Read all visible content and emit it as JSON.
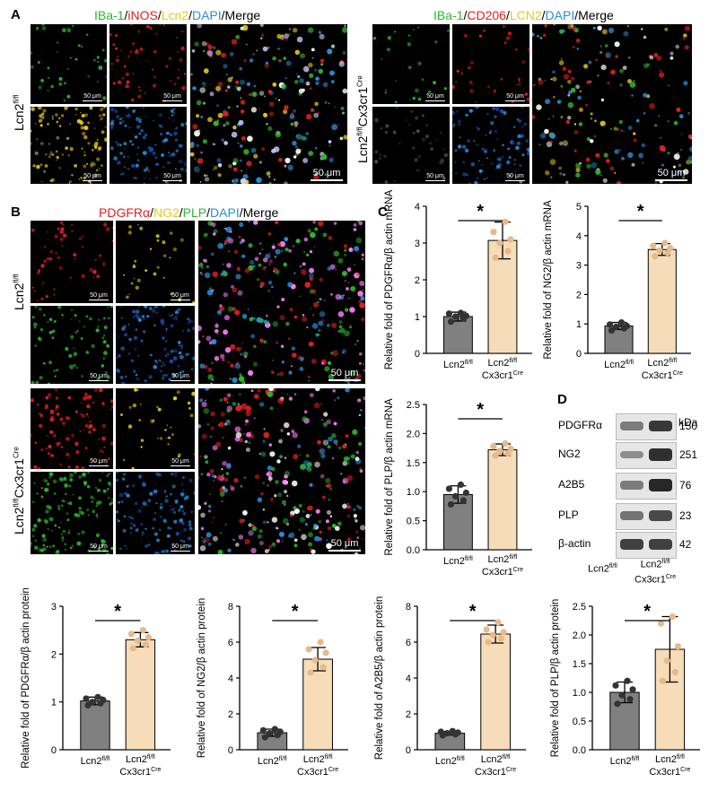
{
  "panel_letters": {
    "a": "A",
    "b": "B",
    "c": "C",
    "d": "D"
  },
  "colors": {
    "green": "#2fb52f",
    "red": "#e02020",
    "yellow": "#e8c81c",
    "blue": "#2a8fd8",
    "bar_control": "#808080",
    "bar_ko": "#f6dcb8",
    "dot_control": "#333333",
    "dot_ko": "#e8b98a"
  },
  "panelA": {
    "left_header": [
      {
        "text": "IBa-1",
        "color": "#2fb52f"
      },
      {
        "text": "/",
        "color": "#000"
      },
      {
        "text": "iNOS",
        "color": "#e02020"
      },
      {
        "text": "/",
        "color": "#000"
      },
      {
        "text": "Lcn2",
        "color": "#e8c81c"
      },
      {
        "text": "/",
        "color": "#000"
      },
      {
        "text": "DAPI",
        "color": "#2a8fd8"
      },
      {
        "text": "/Merge",
        "color": "#000"
      }
    ],
    "right_header": [
      {
        "text": "IBa-1",
        "color": "#2fb52f"
      },
      {
        "text": "/",
        "color": "#000"
      },
      {
        "text": "CD206",
        "color": "#e02020"
      },
      {
        "text": "/",
        "color": "#000"
      },
      {
        "text": "LCN2",
        "color": "#e8c81c"
      },
      {
        "text": "/",
        "color": "#000"
      },
      {
        "text": "DAPI",
        "color": "#2a8fd8"
      },
      {
        "text": "/Merge",
        "color": "#000"
      }
    ],
    "row_left": {
      "base": "Lcn2",
      "sup": "fl/fl",
      "suffix": "",
      "sup2": ""
    },
    "row_right": {
      "base": "Lcn2",
      "sup": "fl/fl",
      "suffix": "Cx3cr1",
      "sup2": "Cre"
    },
    "scale_small": "50 μm",
    "scale_big": "50 μm"
  },
  "panelB": {
    "header": [
      {
        "text": "PDGFRα",
        "color": "#e02020"
      },
      {
        "text": "/",
        "color": "#000"
      },
      {
        "text": "NG2",
        "color": "#e8c81c"
      },
      {
        "text": "/",
        "color": "#000"
      },
      {
        "text": "PLP",
        "color": "#2fb52f"
      },
      {
        "text": "/",
        "color": "#000"
      },
      {
        "text": "DAPI",
        "color": "#2a8fd8"
      },
      {
        "text": "/Merge",
        "color": "#000"
      }
    ],
    "row_top": {
      "base": "Lcn2",
      "sup": "fl/fl",
      "suffix": "",
      "sup2": ""
    },
    "row_bottom": {
      "base": "Lcn2",
      "sup": "fl/fl",
      "suffix": "Cx3cr1",
      "sup2": "Cre"
    },
    "scale_small": "50 μm",
    "scale_big": "50 μm"
  },
  "group_labels": {
    "control": "Lcn2",
    "control_sup": "fl/fl",
    "ko_line1": "Lcn2",
    "ko_line1_sup": "fl/fl",
    "ko_line2": "Cx3cr1",
    "ko_line2_sup": "Cre"
  },
  "significance": "*",
  "chart_data": [
    {
      "type": "bar",
      "id": "c_pdgfra_mrna",
      "ylabel": "Relative fold of PDGFRα/β actin mRNA",
      "ylim": [
        0,
        4
      ],
      "yticks": [
        0,
        1,
        2,
        3,
        4
      ],
      "categories": [
        "Lcn2 fl/fl",
        "Lcn2 fl/fl Cx3cr1 Cre"
      ],
      "values": [
        1.0,
        3.07
      ],
      "errors": [
        0.12,
        0.5
      ],
      "points": [
        [
          0.86,
          0.95,
          1.0,
          1.02,
          1.08,
          1.1
        ],
        [
          2.6,
          2.78,
          3.0,
          3.1,
          3.3,
          3.58
        ]
      ]
    },
    {
      "type": "bar",
      "id": "c_ng2_mrna",
      "ylabel": "Relative fold of NG2/β actin mRNA",
      "ylim": [
        0,
        5
      ],
      "yticks": [
        0,
        1,
        2,
        3,
        4,
        5
      ],
      "categories": [
        "Lcn2 fl/fl",
        "Lcn2 fl/fl Cx3cr1 Cre"
      ],
      "values": [
        0.93,
        3.53
      ],
      "errors": [
        0.12,
        0.2
      ],
      "points": [
        [
          0.78,
          0.85,
          0.9,
          0.93,
          0.98,
          1.05
        ],
        [
          3.3,
          3.42,
          3.5,
          3.58,
          3.66,
          3.75
        ]
      ]
    },
    {
      "type": "bar",
      "id": "c_plp_mrna",
      "ylabel": "Relative fold of PLP/β actin mRNA",
      "ylim": [
        0,
        2.5
      ],
      "yticks": [
        0,
        0.5,
        1.0,
        1.5,
        2.0,
        2.5
      ],
      "categories": [
        "Lcn2 fl/fl",
        "Lcn2 fl/fl Cx3cr1 Cre"
      ],
      "values": [
        0.95,
        1.72
      ],
      "errors": [
        0.15,
        0.1
      ],
      "points": [
        [
          0.78,
          0.85,
          0.92,
          0.98,
          1.05,
          1.12
        ],
        [
          1.62,
          1.66,
          1.7,
          1.74,
          1.78,
          1.83
        ]
      ]
    },
    {
      "type": "bar",
      "id": "d_pdgfra_prot",
      "ylabel": "Relative fold of PDGFRα/β actin protein",
      "ylim": [
        0,
        3
      ],
      "yticks": [
        0,
        1,
        2,
        3
      ],
      "categories": [
        "Lcn2 fl/fl",
        "Lcn2 fl/fl Cx3cr1 Cre"
      ],
      "values": [
        1.02,
        2.3
      ],
      "errors": [
        0.08,
        0.15
      ],
      "points": [
        [
          0.93,
          0.97,
          1.0,
          1.04,
          1.07,
          1.1
        ],
        [
          2.12,
          2.2,
          2.28,
          2.35,
          2.42,
          2.5
        ]
      ]
    },
    {
      "type": "bar",
      "id": "d_ng2_prot",
      "ylabel": "Relative fold of NG2/β actin protein",
      "ylim": [
        0,
        8
      ],
      "yticks": [
        0,
        2,
        4,
        6,
        8
      ],
      "categories": [
        "Lcn2 fl/fl",
        "Lcn2 fl/fl Cx3cr1 Cre"
      ],
      "values": [
        0.95,
        5.05
      ],
      "errors": [
        0.2,
        0.65
      ],
      "points": [
        [
          0.7,
          0.82,
          0.92,
          1.0,
          1.08,
          1.15
        ],
        [
          4.3,
          4.6,
          5.0,
          5.4,
          5.6,
          6.0
        ]
      ]
    },
    {
      "type": "bar",
      "id": "d_a2b5_prot",
      "ylabel": "Relative fold of A2B5/β actin protein",
      "ylim": [
        0,
        8
      ],
      "yticks": [
        0,
        2,
        4,
        6,
        8
      ],
      "categories": [
        "Lcn2 fl/fl",
        "Lcn2 fl/fl Cx3cr1 Cre"
      ],
      "values": [
        0.92,
        6.45
      ],
      "errors": [
        0.1,
        0.5
      ],
      "points": [
        [
          0.8,
          0.86,
          0.92,
          0.96,
          1.0,
          1.04
        ],
        [
          6.0,
          6.2,
          6.4,
          6.55,
          6.7,
          7.1
        ]
      ]
    },
    {
      "type": "bar",
      "id": "d_plp_prot",
      "ylabel": "Relative fold of PLP/β actin protein",
      "ylim": [
        0,
        2.5
      ],
      "yticks": [
        0,
        0.5,
        1.0,
        1.5,
        2.0,
        2.5
      ],
      "categories": [
        "Lcn2 fl/fl",
        "Lcn2 fl/fl Cx3cr1 Cre"
      ],
      "values": [
        1.0,
        1.75
      ],
      "errors": [
        0.18,
        0.57
      ],
      "points": [
        [
          0.8,
          0.88,
          0.95,
          1.05,
          1.12,
          1.2
        ],
        [
          1.2,
          1.35,
          1.55,
          1.8,
          2.2,
          2.32
        ]
      ]
    }
  ],
  "western": {
    "header": "kDa",
    "rows": [
      {
        "label": "PDGFRα",
        "kda": "150",
        "ctrl": 0.45,
        "ko": 0.85
      },
      {
        "label": "NG2",
        "kda": "251",
        "ctrl": 0.35,
        "ko": 0.9
      },
      {
        "label": "A2B5",
        "kda": "76",
        "ctrl": 0.45,
        "ko": 0.95
      },
      {
        "label": "PLP",
        "kda": "23",
        "ctrl": 0.5,
        "ko": 0.75
      },
      {
        "label": "β-actin",
        "kda": "42",
        "ctrl": 0.8,
        "ko": 0.8
      }
    ]
  }
}
